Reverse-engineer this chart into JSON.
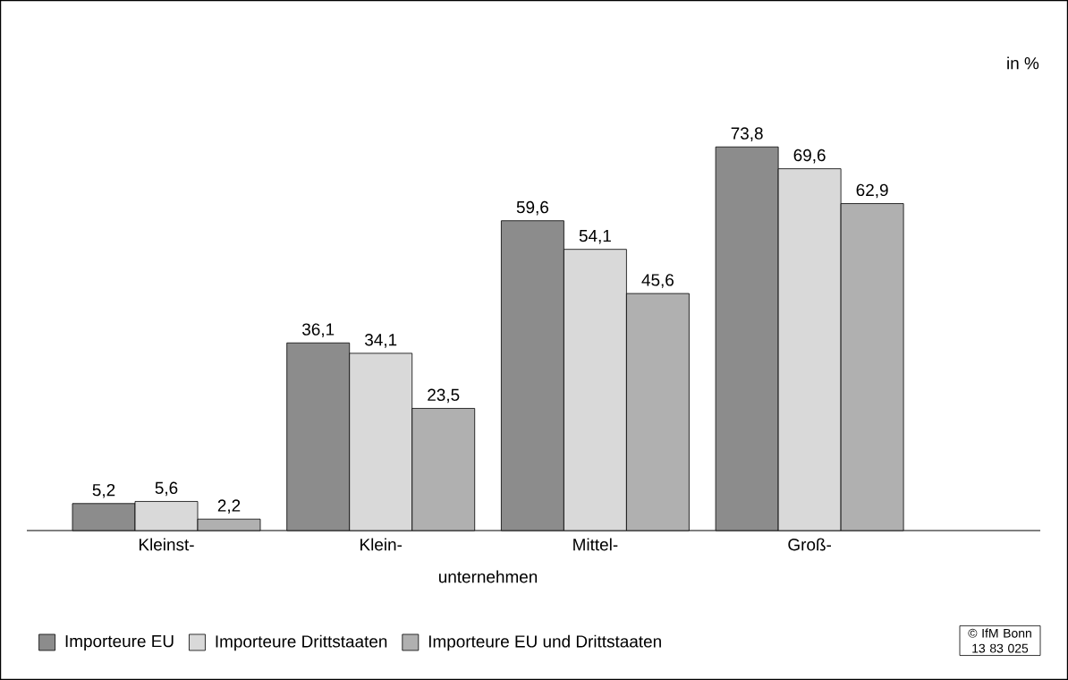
{
  "chart_data": {
    "type": "bar",
    "ylabel": "in %",
    "xlabel": "unternehmen",
    "categories": [
      "Kleinst-",
      "Klein-",
      "Mittel-",
      "Groß-"
    ],
    "series": [
      {
        "name": "Importeure EU",
        "color": "#8c8c8c",
        "values": [
          5.2,
          36.1,
          59.6,
          73.8
        ],
        "value_labels": [
          "5,2",
          "36,1",
          "59,6",
          "73,8"
        ]
      },
      {
        "name": "Importeure Drittstaaten",
        "color": "#d9d9d9",
        "values": [
          5.6,
          34.1,
          54.1,
          69.6
        ],
        "value_labels": [
          "5,6",
          "34,1",
          "54,1",
          "69,6"
        ]
      },
      {
        "name": "Importeure EU und Drittstaaten",
        "color": "#b0b0b0",
        "values": [
          2.2,
          23.5,
          45.6,
          62.9
        ],
        "value_labels": [
          "2,2",
          "23,5",
          "45,6",
          "62,9"
        ]
      }
    ],
    "legend": "bottom",
    "annotations": [
      "© IfM Bonn 13 83 025"
    ]
  }
}
